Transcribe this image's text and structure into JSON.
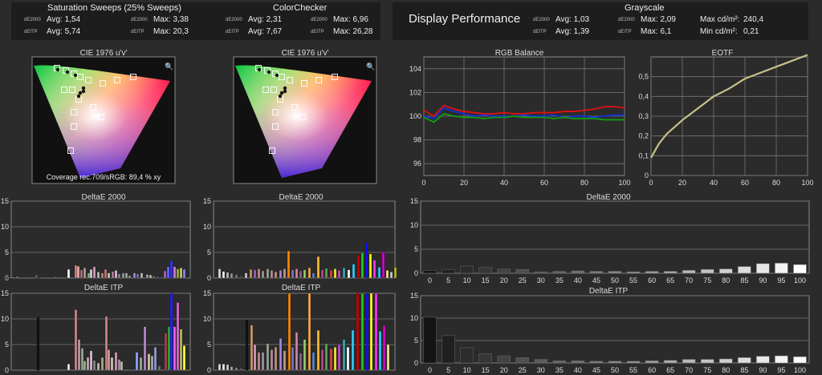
{
  "header": {
    "sat_title": "Saturation Sweeps (25% Sweeps)",
    "cc_title": "ColorChecker",
    "gs_title": "Grayscale",
    "display_title": "Display Performance",
    "de2000_tag": "dE2000",
    "deitp_tag": "dEITP",
    "sat": {
      "avg_de": "Avg: 1,54",
      "max_de": "Max: 3,38",
      "avg_itp": "Avg: 5,74",
      "max_itp": "Max: 20,3"
    },
    "cc": {
      "avg_de": "Avg: 2,31",
      "max_de": "Max: 6,96",
      "avg_itp": "Avg: 7,67",
      "max_itp": "Max: 26,28"
    },
    "gs": {
      "avg_de": "Avg: 1,03",
      "max_de": "Max: 2,09",
      "avg_itp": "Avg: 1,39",
      "max_itp": "Max: 6,1",
      "max_lum_label": "Max cd/m²:",
      "max_lum": "240,4",
      "min_lum_label": "Min cd/m²:",
      "min_lum": "0,21"
    }
  },
  "cie1": {
    "title": "CIE 1976 u'v'",
    "coverage": "Coverage rec.709/sRGB:  89,4 % xy"
  },
  "cie2": {
    "title": "CIE 1976 u'v'"
  },
  "chart_data": [
    {
      "id": "rgb_balance",
      "type": "line",
      "title": "RGB Balance",
      "xlim": [
        0,
        100
      ],
      "ylim": [
        95,
        105
      ],
      "xticks": [
        0,
        20,
        40,
        60,
        80,
        100
      ],
      "yticks": [
        96,
        98,
        100,
        102,
        104
      ],
      "x": [
        0,
        5,
        10,
        15,
        20,
        25,
        30,
        35,
        40,
        45,
        50,
        55,
        60,
        65,
        70,
        75,
        80,
        85,
        90,
        95,
        100
      ],
      "series": [
        {
          "color": "#e01010",
          "values": [
            100.5,
            100.0,
            100.9,
            100.6,
            100.4,
            100.3,
            100.2,
            100.2,
            100.3,
            100.2,
            100.2,
            100.3,
            100.3,
            100.3,
            100.4,
            100.4,
            100.5,
            100.6,
            100.8,
            100.8,
            100.7
          ]
        },
        {
          "color": "#1030e0",
          "values": [
            100.0,
            99.8,
            100.7,
            100.4,
            100.2,
            100.0,
            100.1,
            100.0,
            100.0,
            100.0,
            100.1,
            100.0,
            100.0,
            100.1,
            99.9,
            100.0,
            100.0,
            99.9,
            100.0,
            100.1,
            100.1
          ]
        },
        {
          "color": "#10a010",
          "values": [
            99.9,
            99.5,
            100.2,
            100.0,
            99.9,
            99.9,
            99.8,
            99.9,
            99.9,
            100.0,
            99.9,
            99.9,
            99.9,
            99.8,
            99.9,
            99.8,
            99.8,
            99.8,
            99.7,
            99.7,
            99.7
          ]
        }
      ]
    },
    {
      "id": "eotf",
      "type": "line",
      "title": "EOTF",
      "xlim": [
        0,
        100
      ],
      "ylim": [
        0,
        0.6
      ],
      "xticks": [
        0,
        20,
        40,
        60,
        80,
        100
      ],
      "yticks": [
        0,
        0.1,
        0.2,
        0.3,
        0.4,
        0.5
      ],
      "ytick_labels": [
        "0",
        "0,1",
        "0,2",
        "0,3",
        "0,4",
        "0,5"
      ],
      "x": [
        0,
        5,
        10,
        20,
        30,
        40,
        50,
        60,
        70,
        80,
        90,
        100
      ],
      "series": [
        {
          "color": "#c8c08a",
          "values": [
            0.09,
            0.16,
            0.21,
            0.28,
            0.34,
            0.4,
            0.44,
            0.49,
            0.52,
            0.55,
            0.58,
            0.61
          ]
        }
      ]
    },
    {
      "id": "sat_de2000",
      "type": "bar",
      "title": "DeltaE 2000",
      "ylim": [
        0,
        15
      ],
      "yticks": [
        0,
        5,
        10,
        15
      ],
      "bars": [
        [
          4,
          0.3,
          "#555"
        ],
        [
          7,
          0.3,
          "#888"
        ],
        [
          10,
          0.2,
          "#777"
        ],
        [
          12,
          0.2,
          "#999"
        ],
        [
          15,
          0.2,
          "#a88"
        ],
        [
          20,
          0.3,
          "#a77"
        ],
        [
          44,
          0.6,
          "#666"
        ],
        [
          47,
          0.3,
          "#444"
        ],
        [
          68,
          0.2,
          "#aa8"
        ],
        [
          84,
          1.7,
          "#fff"
        ],
        [
          93,
          2.5,
          "#c88"
        ],
        [
          96,
          2.3,
          "#eaa"
        ],
        [
          100,
          1.6,
          "#a77"
        ],
        [
          104,
          2.0,
          "#b99"
        ],
        [
          109,
          1.0,
          "#8a8"
        ],
        [
          112,
          1.7,
          "#cdc"
        ],
        [
          116,
          2.2,
          "#d9b"
        ],
        [
          121,
          1.2,
          "#bbb"
        ],
        [
          126,
          1.0,
          "#b88"
        ],
        [
          130,
          1.7,
          "#c77"
        ],
        [
          134,
          1.0,
          "#ccb"
        ],
        [
          139,
          1.3,
          "#b79"
        ],
        [
          143,
          1.5,
          "#dbd"
        ],
        [
          147,
          0.8,
          "#888"
        ],
        [
          152,
          1.0,
          "#99b"
        ],
        [
          156,
          1.0,
          "#aa9"
        ],
        [
          160,
          0.5,
          "#999"
        ],
        [
          166,
          1.0,
          "#a8c"
        ],
        [
          170,
          0.8,
          "#77a"
        ],
        [
          175,
          1.0,
          "#bba"
        ],
        [
          182,
          0.7,
          "#9ab"
        ],
        [
          186,
          0.6,
          "#cc9"
        ],
        [
          190,
          0.4,
          "#777"
        ],
        [
          195,
          0.3,
          "#666"
        ],
        [
          199,
          0.3,
          "#555"
        ],
        [
          204,
          1.4,
          "#a6c"
        ],
        [
          208,
          2.2,
          "#66f"
        ],
        [
          212,
          3.4,
          "#33f"
        ],
        [
          216,
          2.2,
          "#c8c"
        ],
        [
          220,
          1.8,
          "#aa4"
        ],
        [
          224,
          2.0,
          "#cc6"
        ],
        [
          228,
          1.7,
          "#88f"
        ]
      ]
    },
    {
      "id": "cc_de2000",
      "type": "bar",
      "title": "DeltaE 2000",
      "ylim": [
        0,
        15
      ],
      "yticks": [
        0,
        5,
        10,
        15
      ],
      "bars": [
        [
          272,
          1.8,
          "#ddd"
        ],
        [
          277,
          1.3,
          "#eee"
        ],
        [
          282,
          1.1,
          "#bbb"
        ],
        [
          287,
          0.9,
          "#999"
        ],
        [
          293,
          0.7,
          "#777"
        ],
        [
          299,
          0.4,
          "#555"
        ],
        [
          305,
          1.0,
          "#ccc"
        ],
        [
          311,
          1.7,
          "#c96"
        ],
        [
          316,
          1.6,
          "#96b"
        ],
        [
          321,
          1.8,
          "#c88"
        ],
        [
          326,
          1.4,
          "#99a"
        ],
        [
          332,
          1.8,
          "#9a8"
        ],
        [
          337,
          1.5,
          "#b8a"
        ],
        [
          342,
          1.2,
          "#b97"
        ],
        [
          348,
          1.5,
          "#a8d"
        ],
        [
          353,
          1.8,
          "#c98"
        ],
        [
          358,
          5.3,
          "#f80"
        ],
        [
          363,
          1.6,
          "#77c"
        ],
        [
          368,
          1.8,
          "#d88"
        ],
        [
          373,
          1.4,
          "#868"
        ],
        [
          378,
          1.6,
          "#9c6"
        ],
        [
          384,
          2.0,
          "#fa4"
        ],
        [
          389,
          1.0,
          "#58c"
        ],
        [
          395,
          4.2,
          "#fb3"
        ],
        [
          400,
          1.6,
          "#b48"
        ],
        [
          405,
          1.9,
          "#5a5"
        ],
        [
          411,
          1.5,
          "#d44"
        ],
        [
          416,
          1.8,
          "#ee3"
        ],
        [
          421,
          1.5,
          "#c4c"
        ],
        [
          427,
          2.0,
          "#3aa"
        ],
        [
          433,
          1.6,
          "#fff"
        ],
        [
          439,
          2.7,
          "#3cf"
        ],
        [
          445,
          4.5,
          "#c00"
        ],
        [
          450,
          4.9,
          "#2c2"
        ],
        [
          455,
          6.9,
          "#11f"
        ],
        [
          460,
          4.7,
          "#ff2"
        ],
        [
          465,
          3.5,
          "#f3f"
        ],
        [
          471,
          2.1,
          "#2cf"
        ],
        [
          476,
          5.1,
          "#d0c"
        ],
        [
          481,
          1.5,
          "#ee8"
        ],
        [
          486,
          1.2,
          "#ccc"
        ],
        [
          491,
          2.1,
          "#bb2"
        ]
      ]
    },
    {
      "id": "sat_itp",
      "type": "bar",
      "title": "DeltaE ITP",
      "ylim": [
        0,
        15
      ],
      "yticks": [
        0,
        5,
        10,
        15
      ],
      "bars": [
        [
          46,
          10.3,
          "#111"
        ],
        [
          84,
          1.2,
          "#eee"
        ],
        [
          93,
          11.8,
          "#c88"
        ],
        [
          97,
          6.0,
          "#b9a"
        ],
        [
          101,
          4.3,
          "#9a9"
        ],
        [
          104,
          1.8,
          "#8b8"
        ],
        [
          108,
          2.5,
          "#caa"
        ],
        [
          112,
          3.8,
          "#dbd"
        ],
        [
          116,
          1.9,
          "#888"
        ],
        [
          121,
          1.4,
          "#bbb"
        ],
        [
          126,
          2.5,
          "#aa8"
        ],
        [
          131,
          10.5,
          "#c88"
        ],
        [
          134,
          4.0,
          "#d99"
        ],
        [
          138,
          2.5,
          "#ccb"
        ],
        [
          143,
          3.5,
          "#d9b"
        ],
        [
          147,
          2.1,
          "#a9b"
        ],
        [
          150,
          1.7,
          "#bba"
        ],
        [
          169,
          3.5,
          "#8af"
        ],
        [
          174,
          2.5,
          "#aa9"
        ],
        [
          179,
          8.5,
          "#b8c"
        ],
        [
          184,
          3.2,
          "#cc9"
        ],
        [
          188,
          2.8,
          "#aab"
        ],
        [
          192,
          4.5,
          "#99d"
        ],
        [
          197,
          0.8,
          "#777"
        ],
        [
          205,
          7.2,
          "#a44"
        ],
        [
          209,
          8.5,
          "#3a3"
        ],
        [
          212,
          15.0,
          "#22f"
        ],
        [
          216,
          8.5,
          "#e6e"
        ],
        [
          220,
          13.2,
          "#d6d"
        ],
        [
          224,
          8.0,
          "#bb5"
        ],
        [
          228,
          4.8,
          "#ff4"
        ]
      ]
    },
    {
      "id": "cc_itp",
      "type": "bar",
      "title": "DeltaE ITP",
      "ylim": [
        0,
        15
      ],
      "yticks": [
        0,
        5,
        10,
        15
      ],
      "bars": [
        [
          272,
          1.2,
          "#ddd"
        ],
        [
          277,
          1.2,
          "#eee"
        ],
        [
          282,
          1.1,
          "#ccc"
        ],
        [
          287,
          0.7,
          "#aaa"
        ],
        [
          293,
          0.5,
          "#888"
        ],
        [
          299,
          0.4,
          "#666"
        ],
        [
          306,
          9.8,
          "#111"
        ],
        [
          312,
          8.8,
          "#c96"
        ],
        [
          316,
          5.0,
          "#d9b"
        ],
        [
          321,
          3.5,
          "#c88"
        ],
        [
          326,
          3.5,
          "#99a"
        ],
        [
          332,
          5.2,
          "#9a8"
        ],
        [
          337,
          4.0,
          "#b8a"
        ],
        [
          342,
          4.5,
          "#b97"
        ],
        [
          348,
          6.2,
          "#a8d"
        ],
        [
          353,
          3.8,
          "#c98"
        ],
        [
          359,
          15.0,
          "#f80"
        ],
        [
          363,
          4.5,
          "#77c"
        ],
        [
          368,
          7.4,
          "#c8a"
        ],
        [
          373,
          3.3,
          "#868"
        ],
        [
          378,
          6.0,
          "#9c6"
        ],
        [
          384,
          15.0,
          "#fa4"
        ],
        [
          389,
          3.5,
          "#58c"
        ],
        [
          395,
          7.8,
          "#fb3"
        ],
        [
          400,
          4.0,
          "#b48"
        ],
        [
          405,
          5.2,
          "#5a5"
        ],
        [
          411,
          4.2,
          "#d44"
        ],
        [
          416,
          4.5,
          "#ee3"
        ],
        [
          421,
          5.0,
          "#c4c"
        ],
        [
          427,
          6.0,
          "#3aa"
        ],
        [
          432,
          4.5,
          "#fff"
        ],
        [
          438,
          7.8,
          "#3cf"
        ],
        [
          444,
          15.0,
          "#c00"
        ],
        [
          450,
          15.0,
          "#2c2"
        ],
        [
          456,
          15.0,
          "#11f"
        ],
        [
          461,
          15.0,
          "#ff2"
        ],
        [
          467,
          15.0,
          "#f3f"
        ],
        [
          472,
          7.6,
          "#2cf"
        ],
        [
          477,
          8.7,
          "#d0c"
        ],
        [
          482,
          5.0,
          "#ee8"
        ]
      ]
    },
    {
      "id": "gs_de2000",
      "type": "bar",
      "title": "DeltaE 2000",
      "ylim": [
        0,
        15
      ],
      "yticks": [
        0,
        5,
        10,
        15
      ],
      "categories": [
        "0",
        "5",
        "10",
        "15",
        "20",
        "25",
        "30",
        "35",
        "40",
        "45",
        "50",
        "55",
        "60",
        "65",
        "70",
        "75",
        "80",
        "85",
        "90",
        "95",
        "100"
      ],
      "values": [
        0.6,
        0.8,
        1.5,
        1.2,
        0.9,
        0.8,
        0.3,
        0.4,
        0.5,
        0.4,
        0.4,
        0.3,
        0.4,
        0.4,
        0.6,
        0.8,
        0.9,
        1.4,
        2.0,
        2.1,
        1.8
      ]
    },
    {
      "id": "gs_itp",
      "type": "bar",
      "title": "DeltaE ITP",
      "ylim": [
        0,
        15
      ],
      "yticks": [
        0,
        5,
        10,
        15
      ],
      "categories": [
        "0",
        "5",
        "10",
        "15",
        "20",
        "25",
        "30",
        "35",
        "40",
        "45",
        "50",
        "55",
        "60",
        "65",
        "70",
        "75",
        "80",
        "85",
        "90",
        "95",
        "100"
      ],
      "values": [
        10.2,
        6.1,
        3.4,
        2.1,
        1.6,
        1.2,
        0.8,
        0.5,
        0.5,
        0.4,
        0.4,
        0.4,
        0.5,
        0.6,
        0.8,
        0.8,
        0.9,
        1.2,
        1.5,
        1.6,
        1.4
      ]
    }
  ]
}
